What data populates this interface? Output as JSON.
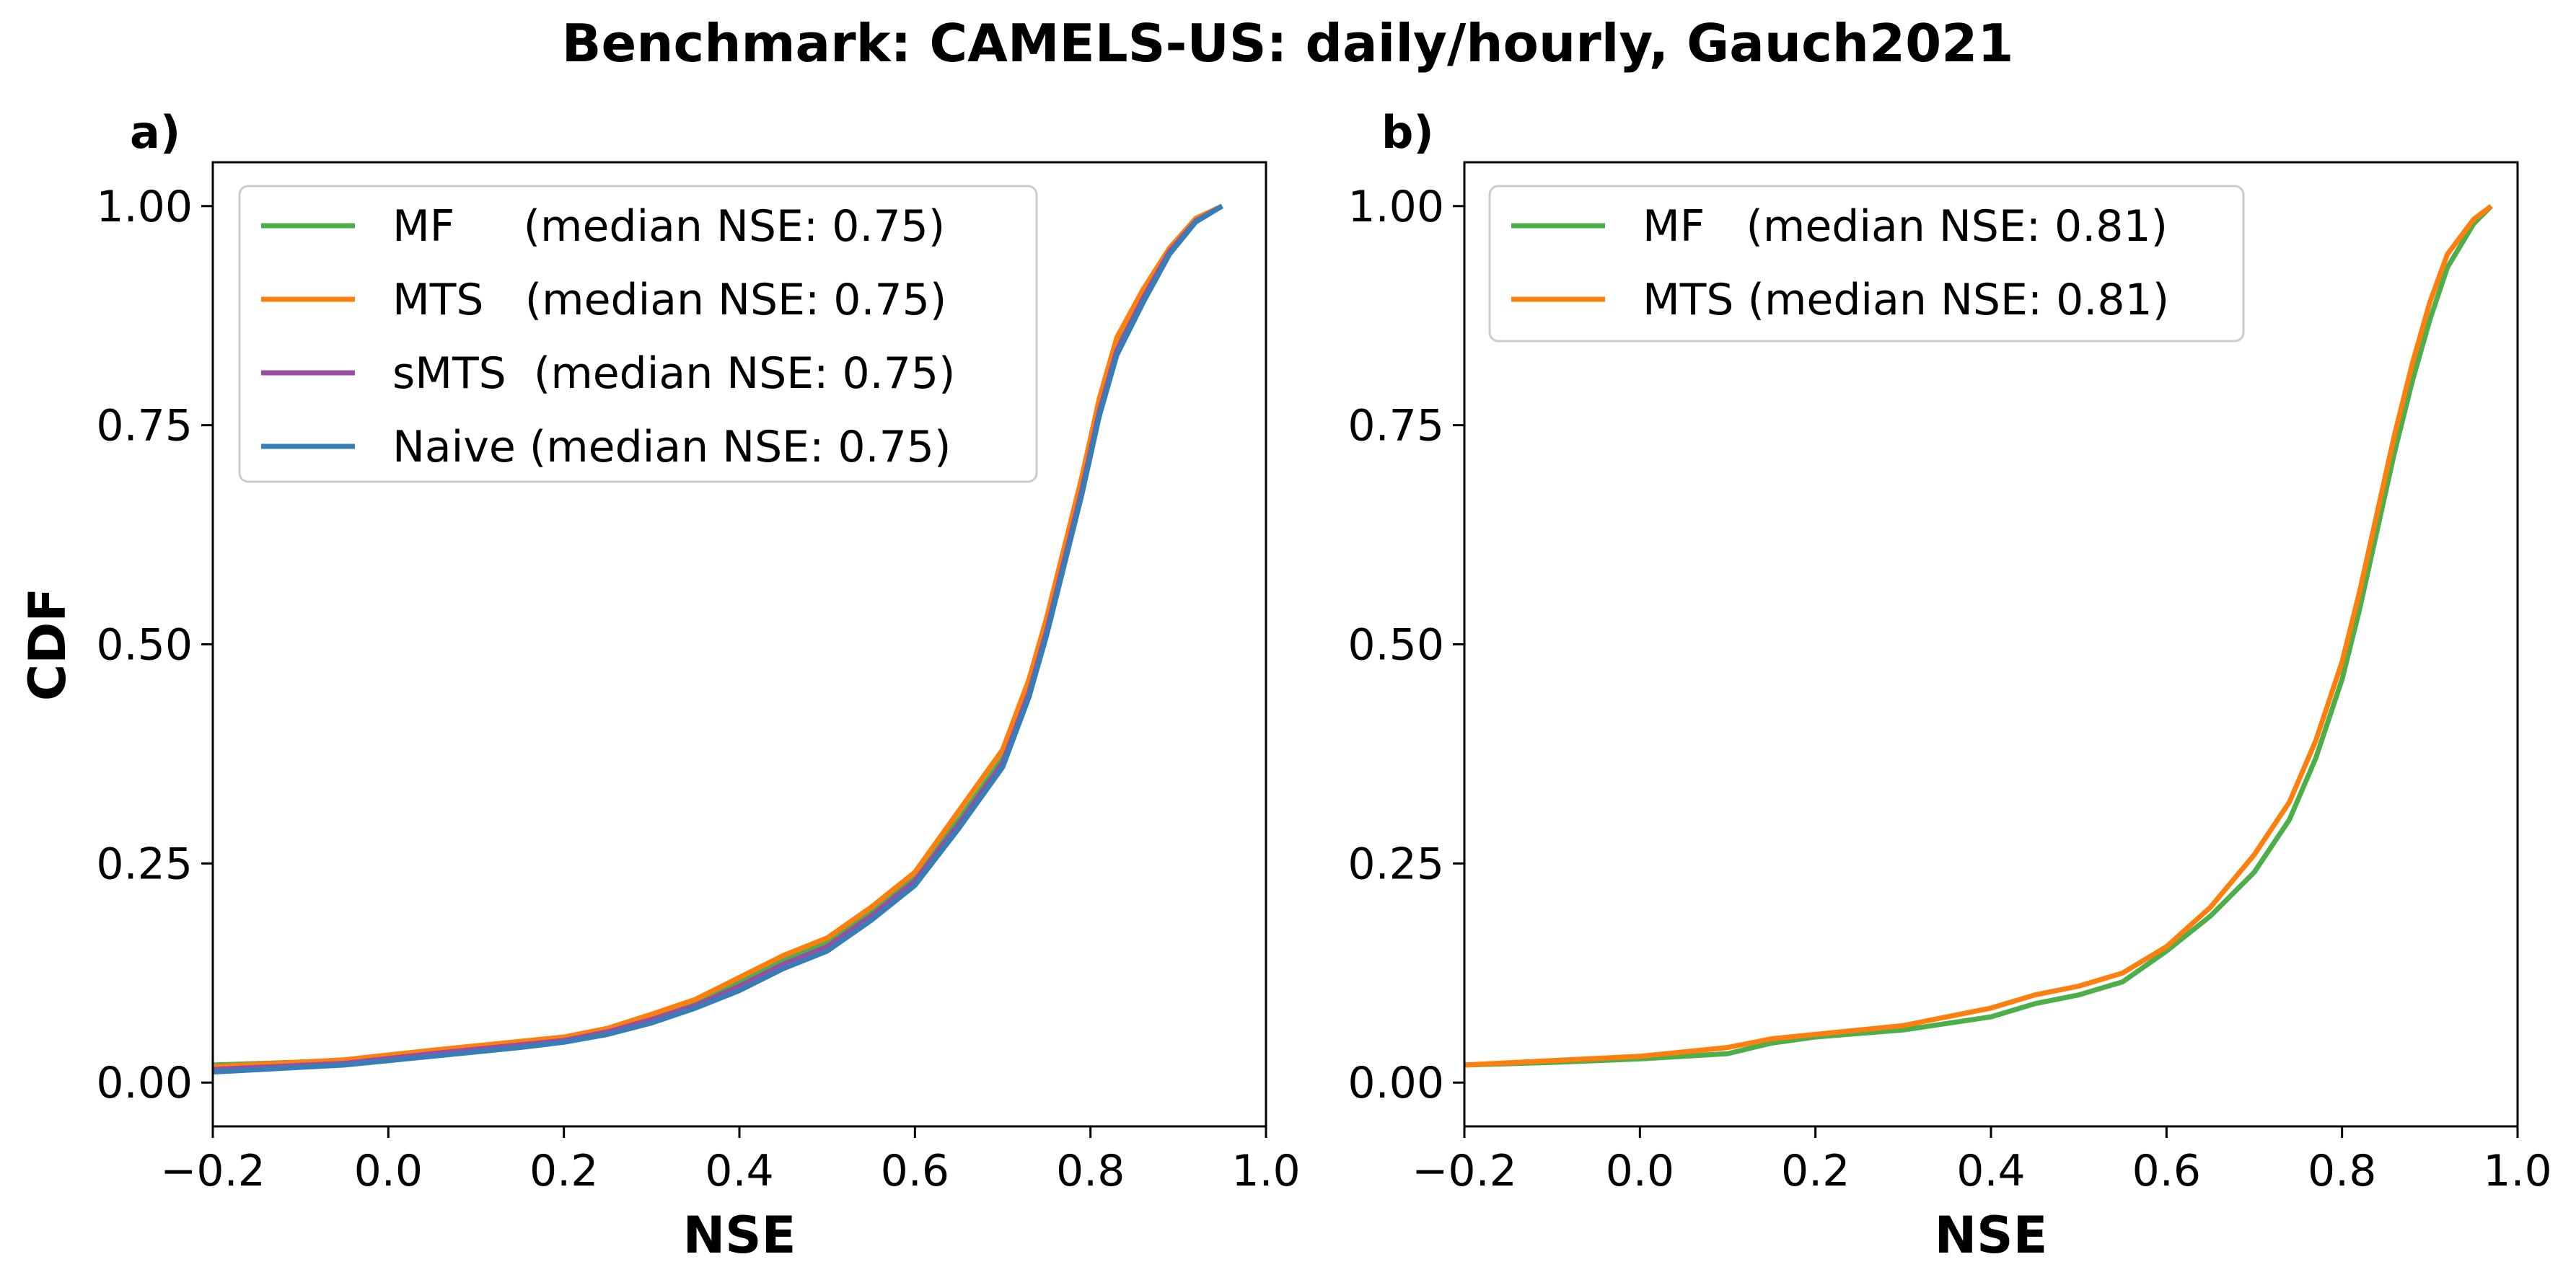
{
  "title": "Benchmark: CAMELS-US: daily/hourly, Gauch2021",
  "colors": {
    "MF": "#4daf4a",
    "MTS": "#ff7f0e",
    "sMTS": "#984ea3",
    "Naive": "#377eb8"
  },
  "chart_data": [
    {
      "type": "line",
      "panel_label": "a)",
      "xlabel": "NSE",
      "ylabel": "CDF",
      "xlim": [
        -0.2,
        1.0
      ],
      "ylim": [
        -0.05,
        1.05
      ],
      "xticks": [
        -0.2,
        0.0,
        0.2,
        0.4,
        0.6,
        0.8,
        1.0
      ],
      "xtick_labels": [
        "−0.2",
        "0.0",
        "0.2",
        "0.4",
        "0.6",
        "0.8",
        "1.0"
      ],
      "yticks": [
        0.0,
        0.25,
        0.5,
        0.75,
        1.0
      ],
      "ytick_labels": [
        "0.00",
        "0.25",
        "0.50",
        "0.75",
        "1.00"
      ],
      "legend_position": "upper-left",
      "series": [
        {
          "name": "MF     (median NSE: 0.75)",
          "color_key": "MF",
          "x": [
            -0.2,
            -0.05,
            0.05,
            0.15,
            0.2,
            0.25,
            0.3,
            0.35,
            0.4,
            0.45,
            0.5,
            0.55,
            0.6,
            0.65,
            0.7,
            0.73,
            0.75,
            0.77,
            0.79,
            0.81,
            0.83,
            0.86,
            0.89,
            0.92,
            0.95
          ],
          "y": [
            0.02,
            0.025,
            0.035,
            0.045,
            0.05,
            0.06,
            0.075,
            0.09,
            0.115,
            0.14,
            0.16,
            0.195,
            0.235,
            0.3,
            0.37,
            0.45,
            0.52,
            0.6,
            0.68,
            0.77,
            0.84,
            0.9,
            0.95,
            0.985,
            1.0
          ]
        },
        {
          "name": "MTS   (median NSE: 0.75)",
          "color_key": "MTS",
          "x": [
            -0.2,
            -0.05,
            0.05,
            0.15,
            0.2,
            0.25,
            0.3,
            0.35,
            0.4,
            0.45,
            0.5,
            0.55,
            0.6,
            0.65,
            0.7,
            0.73,
            0.75,
            0.77,
            0.79,
            0.81,
            0.83,
            0.86,
            0.89,
            0.92,
            0.95
          ],
          "y": [
            0.018,
            0.026,
            0.037,
            0.047,
            0.052,
            0.062,
            0.078,
            0.095,
            0.12,
            0.145,
            0.165,
            0.2,
            0.24,
            0.31,
            0.38,
            0.46,
            0.53,
            0.61,
            0.69,
            0.78,
            0.85,
            0.905,
            0.952,
            0.986,
            1.0
          ]
        },
        {
          "name": "sMTS  (median NSE: 0.75)",
          "color_key": "sMTS",
          "x": [
            -0.2,
            -0.05,
            0.05,
            0.15,
            0.2,
            0.25,
            0.3,
            0.35,
            0.4,
            0.45,
            0.5,
            0.55,
            0.6,
            0.65,
            0.7,
            0.73,
            0.75,
            0.77,
            0.79,
            0.81,
            0.83,
            0.86,
            0.89,
            0.92,
            0.95
          ],
          "y": [
            0.015,
            0.022,
            0.033,
            0.043,
            0.048,
            0.058,
            0.072,
            0.088,
            0.11,
            0.135,
            0.155,
            0.19,
            0.23,
            0.295,
            0.365,
            0.445,
            0.515,
            0.595,
            0.675,
            0.765,
            0.835,
            0.895,
            0.948,
            0.983,
            1.0
          ]
        },
        {
          "name": "Naive (median NSE: 0.75)",
          "color_key": "Naive",
          "x": [
            -0.2,
            -0.05,
            0.05,
            0.15,
            0.2,
            0.25,
            0.3,
            0.35,
            0.4,
            0.45,
            0.5,
            0.55,
            0.6,
            0.65,
            0.7,
            0.73,
            0.75,
            0.77,
            0.79,
            0.81,
            0.83,
            0.86,
            0.89,
            0.92,
            0.95
          ],
          "y": [
            0.012,
            0.02,
            0.03,
            0.04,
            0.046,
            0.055,
            0.068,
            0.085,
            0.105,
            0.13,
            0.15,
            0.185,
            0.225,
            0.29,
            0.36,
            0.44,
            0.51,
            0.59,
            0.67,
            0.76,
            0.83,
            0.89,
            0.945,
            0.982,
            1.0
          ]
        }
      ]
    },
    {
      "type": "line",
      "panel_label": "b)",
      "xlabel": "NSE",
      "ylabel": "",
      "xlim": [
        -0.2,
        1.0
      ],
      "ylim": [
        -0.05,
        1.05
      ],
      "xticks": [
        -0.2,
        0.0,
        0.2,
        0.4,
        0.6,
        0.8,
        1.0
      ],
      "xtick_labels": [
        "−0.2",
        "0.0",
        "0.2",
        "0.4",
        "0.6",
        "0.8",
        "1.0"
      ],
      "yticks": [
        0.0,
        0.25,
        0.5,
        0.75,
        1.0
      ],
      "ytick_labels": [
        "0.00",
        "0.25",
        "0.50",
        "0.75",
        "1.00"
      ],
      "legend_position": "upper-left",
      "series": [
        {
          "name": "MF   (median NSE: 0.81)",
          "color_key": "MF",
          "x": [
            -0.2,
            -0.1,
            0.0,
            0.1,
            0.15,
            0.2,
            0.3,
            0.4,
            0.45,
            0.5,
            0.55,
            0.6,
            0.65,
            0.7,
            0.74,
            0.77,
            0.8,
            0.82,
            0.84,
            0.86,
            0.88,
            0.9,
            0.92,
            0.95,
            0.97
          ],
          "y": [
            0.02,
            0.023,
            0.027,
            0.033,
            0.045,
            0.052,
            0.06,
            0.075,
            0.09,
            0.1,
            0.115,
            0.15,
            0.19,
            0.24,
            0.3,
            0.37,
            0.46,
            0.54,
            0.63,
            0.72,
            0.8,
            0.87,
            0.93,
            0.98,
            1.0
          ]
        },
        {
          "name": "MTS (median NSE: 0.81)",
          "color_key": "MTS",
          "x": [
            -0.2,
            -0.1,
            0.0,
            0.1,
            0.15,
            0.2,
            0.3,
            0.4,
            0.45,
            0.5,
            0.55,
            0.6,
            0.65,
            0.7,
            0.74,
            0.77,
            0.8,
            0.82,
            0.84,
            0.86,
            0.88,
            0.9,
            0.92,
            0.95,
            0.97
          ],
          "y": [
            0.02,
            0.025,
            0.03,
            0.04,
            0.05,
            0.055,
            0.065,
            0.085,
            0.1,
            0.11,
            0.125,
            0.155,
            0.2,
            0.26,
            0.32,
            0.39,
            0.48,
            0.56,
            0.65,
            0.74,
            0.82,
            0.89,
            0.945,
            0.985,
            1.0
          ]
        }
      ]
    }
  ]
}
